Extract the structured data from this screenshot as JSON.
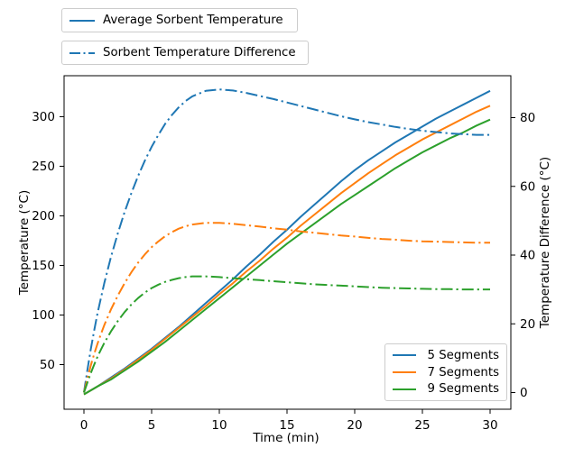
{
  "figure": {
    "background": "#ffffff",
    "axis_color": "#000000"
  },
  "chart_data": {
    "type": "line",
    "title": "",
    "xlabel": "Time (min)",
    "ylabel_left": "Temperature (°C)",
    "ylabel_right": "Temperature Difference (°C)",
    "x_ticks": [
      0,
      5,
      10,
      15,
      20,
      25,
      30
    ],
    "left_ticks": [
      50,
      100,
      150,
      200,
      250,
      300
    ],
    "right_ticks": [
      0,
      20,
      40,
      60,
      80
    ],
    "xlim": [
      -1.467,
      31.533
    ],
    "ylim_left": [
      5.0,
      341.3
    ],
    "ylim_right": [
      -4.85,
      92.2
    ],
    "grid": false,
    "legend_top": [
      {
        "label": "Average Sorbent Temperature",
        "style": "solid",
        "color": "#1f77b4"
      },
      {
        "label": "Sorbent Temperature Difference",
        "style": "dashdot",
        "color": "#1f77b4"
      }
    ],
    "legend_segments": {
      "position": "lower right",
      "items": [
        {
          "label": "5 Segments",
          "color": "#1f77b4"
        },
        {
          "label": "7 Segments",
          "color": "#ff7f0e"
        },
        {
          "label": "9 Segments",
          "color": "#2ca02c"
        }
      ]
    },
    "x_solid": [
      0,
      1,
      2,
      3,
      4,
      5,
      6,
      7,
      8,
      9,
      10,
      11,
      12,
      13,
      14,
      15,
      16,
      17,
      18,
      19,
      20,
      21,
      22,
      23,
      24,
      25,
      26,
      27,
      28,
      29,
      30
    ],
    "x_dashdot": [
      0,
      0.25,
      0.5,
      0.75,
      1,
      1.25,
      1.5,
      2,
      2.5,
      3,
      3.5,
      4,
      4.5,
      5,
      5.5,
      6,
      6.5,
      7,
      7.5,
      8,
      9,
      10,
      11,
      12,
      13,
      14,
      15,
      16,
      17,
      18,
      19,
      20,
      21,
      22,
      23,
      24,
      25,
      26,
      27,
      28,
      29,
      30
    ],
    "series": [
      {
        "name": "Average Sorbent Temperature - 5 Segments",
        "slug": "avg-temp-5-segments",
        "axis": "left",
        "style": "solid",
        "color": "#1f77b4",
        "x_ref": "x_solid",
        "y": [
          20,
          28,
          37,
          46,
          56,
          66,
          77,
          88,
          100,
          112,
          124,
          136,
          149,
          161,
          174,
          186,
          199,
          211,
          223,
          235,
          246,
          256,
          265,
          274,
          282,
          290,
          298,
          305,
          312,
          319,
          326
        ]
      },
      {
        "name": "Average Sorbent Temperature - 7 Segments",
        "slug": "avg-temp-7-segments",
        "axis": "left",
        "style": "solid",
        "color": "#ff7f0e",
        "x_ref": "x_solid",
        "y": [
          20,
          28,
          36,
          45,
          55,
          65,
          76,
          87,
          98,
          109,
          121,
          132,
          144,
          155,
          167,
          178,
          190,
          201,
          212,
          223,
          233,
          243,
          252,
          261,
          269,
          277,
          284,
          291,
          298,
          305,
          311
        ]
      },
      {
        "name": "Average Sorbent Temperature - 9 Segments",
        "slug": "avg-temp-9-segments",
        "axis": "left",
        "style": "solid",
        "color": "#2ca02c",
        "x_ref": "x_solid",
        "y": [
          20,
          28,
          35,
          44,
          53,
          63,
          73,
          84,
          95,
          106,
          117,
          128,
          139,
          150,
          161,
          172,
          182,
          192,
          202,
          212,
          221,
          230,
          239,
          248,
          256,
          264,
          271,
          278,
          284,
          291,
          297
        ]
      },
      {
        "name": "Sorbent Temperature Difference - 5 Segments",
        "slug": "temp-diff-5-segments",
        "axis": "right",
        "style": "dashdot",
        "color": "#1f77b4",
        "x_ref": "x_dashdot",
        "y": [
          0,
          6.5,
          12.5,
          18,
          23,
          27.5,
          31.8,
          39.5,
          46.3,
          52.5,
          58,
          63,
          67.5,
          71.5,
          75,
          78.2,
          80.8,
          83,
          84.8,
          86.2,
          87.8,
          88.2,
          87.9,
          87.2,
          86.3,
          85.4,
          84.4,
          83.4,
          82.4,
          81.4,
          80.4,
          79.5,
          78.7,
          78,
          77.3,
          76.7,
          76.2,
          75.8,
          75.4,
          75.2,
          75,
          75
        ]
      },
      {
        "name": "Sorbent Temperature Difference - 7 Segments",
        "slug": "temp-diff-7-segments",
        "axis": "right",
        "style": "dashdot",
        "color": "#ff7f0e",
        "x_ref": "x_dashdot",
        "y": [
          0,
          4,
          7.8,
          11.2,
          14.2,
          17,
          19.6,
          24.2,
          28.2,
          31.8,
          35,
          37.8,
          40.2,
          42.3,
          44,
          45.5,
          46.7,
          47.7,
          48.4,
          48.9,
          49.4,
          49.4,
          49.1,
          48.7,
          48.3,
          47.8,
          47.4,
          46.9,
          46.5,
          46.1,
          45.7,
          45.4,
          45,
          44.7,
          44.5,
          44.2,
          44,
          43.9,
          43.8,
          43.7,
          43.6,
          43.6
        ]
      },
      {
        "name": "Sorbent Temperature Difference - 9 Segments",
        "slug": "temp-diff-9-segments",
        "axis": "right",
        "style": "dashdot",
        "color": "#2ca02c",
        "x_ref": "x_dashdot",
        "y": [
          0,
          2.9,
          5.6,
          8.1,
          10.4,
          12.5,
          14.4,
          17.8,
          20.8,
          23.4,
          25.6,
          27.5,
          29.1,
          30.4,
          31.4,
          32.2,
          32.8,
          33.3,
          33.6,
          33.8,
          33.8,
          33.6,
          33.3,
          33,
          32.7,
          32.4,
          32.1,
          31.8,
          31.5,
          31.3,
          31.1,
          30.9,
          30.7,
          30.5,
          30.4,
          30.3,
          30.2,
          30.1,
          30.1,
          30,
          30,
          30
        ]
      }
    ]
  }
}
